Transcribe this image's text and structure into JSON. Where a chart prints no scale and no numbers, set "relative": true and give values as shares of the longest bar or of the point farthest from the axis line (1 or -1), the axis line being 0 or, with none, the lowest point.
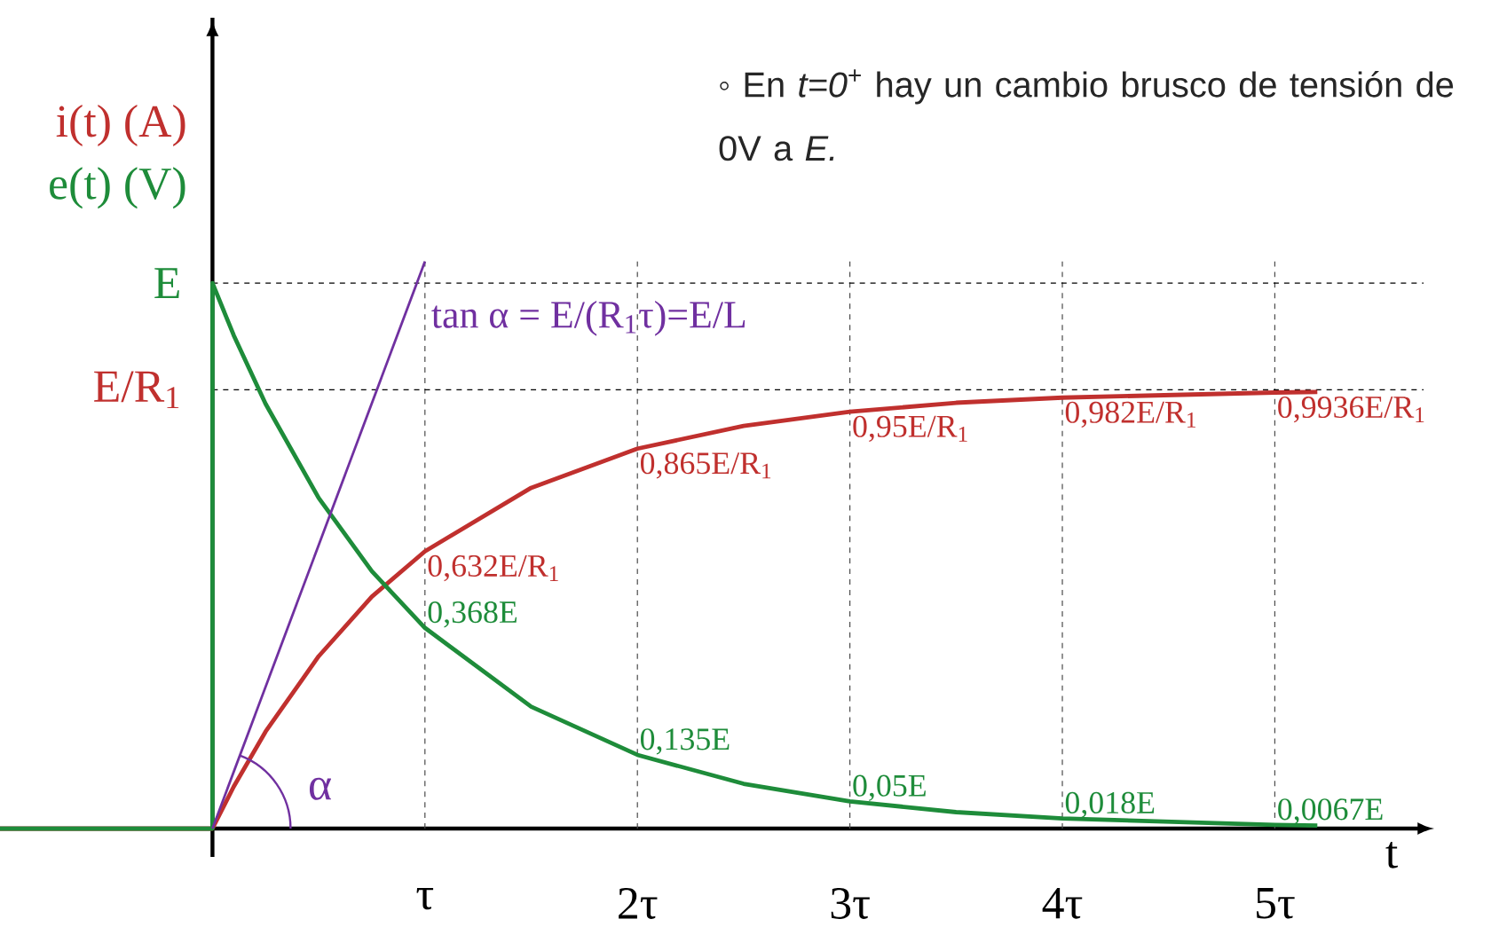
{
  "chart_data": {
    "type": "line",
    "relative": true,
    "xlabel": "t",
    "xlim": [
      -1,
      5.7
    ],
    "xticks": [
      {
        "value": 1,
        "label": "τ"
      },
      {
        "value": 2,
        "label": "2τ"
      },
      {
        "value": 3,
        "label": "3τ"
      },
      {
        "value": 4,
        "label": "4τ"
      },
      {
        "value": 5,
        "label": "5τ"
      }
    ],
    "grid": "x",
    "series": [
      {
        "name": "i(t) (A)",
        "color": "#c0302e",
        "x": [
          -1,
          0,
          0.1,
          0.25,
          0.5,
          0.75,
          1,
          1.5,
          2,
          2.5,
          3,
          3.5,
          4,
          5,
          5.2
        ],
        "values": [
          0,
          0,
          0.074,
          0.171,
          0.304,
          0.409,
          0.489,
          0.601,
          0.67,
          0.71,
          0.735,
          0.751,
          0.76,
          0.769,
          0.77
        ]
      },
      {
        "name": "e(t) (V)",
        "color": "#1e8c3a",
        "x": [
          -1,
          0,
          0,
          0.1,
          0.25,
          0.5,
          0.75,
          1,
          1.5,
          2,
          2.5,
          3,
          3.5,
          4,
          5,
          5.2
        ],
        "values": [
          0,
          0,
          0.962,
          0.87,
          0.749,
          0.583,
          0.454,
          0.354,
          0.215,
          0.13,
          0.079,
          0.048,
          0.029,
          0.018,
          0.0064,
          0.0053
        ]
      },
      {
        "name": "tan α = E/(R$_{1}$τ)=E/L",
        "color": "#7030a0",
        "x": [
          0,
          1
        ],
        "values": [
          0,
          1
        ]
      }
    ],
    "ref_lines": [
      {
        "axis": "y",
        "value": 0.962,
        "label": "E",
        "line_style": "dashed"
      },
      {
        "axis": "y",
        "value": 0.774,
        "label": "E/R$_{1}$",
        "line_style": "dashed"
      }
    ],
    "annotations": [
      "α",
      "◦ En *t=0*$^{+}$ hay un cambio brusco de tensión de 0V a *E.*",
      {
        "text": "0,632E/R$_{1}$",
        "x": 1,
        "y": 0.489
      },
      {
        "text": "0,865E/R$_{1}$",
        "x": 2,
        "y": 0.67
      },
      {
        "text": "0,95E/R$_{1}$",
        "x": 3,
        "y": 0.735
      },
      {
        "text": "0,982E/R$_{1}$",
        "x": 4,
        "y": 0.76
      },
      {
        "text": "0,9936E/R$_{1}$",
        "x": 5,
        "y": 0.769
      },
      {
        "text": "0,368E",
        "x": 1,
        "y": 0.354
      },
      {
        "text": "0,135E",
        "x": 2,
        "y": 0.13
      },
      {
        "text": "0,05E",
        "x": 3,
        "y": 0.048
      },
      {
        "text": "0,018E",
        "x": 4,
        "y": 0.018
      },
      {
        "text": "0,0067E",
        "x": 5,
        "y": 0.0064
      }
    ]
  }
}
